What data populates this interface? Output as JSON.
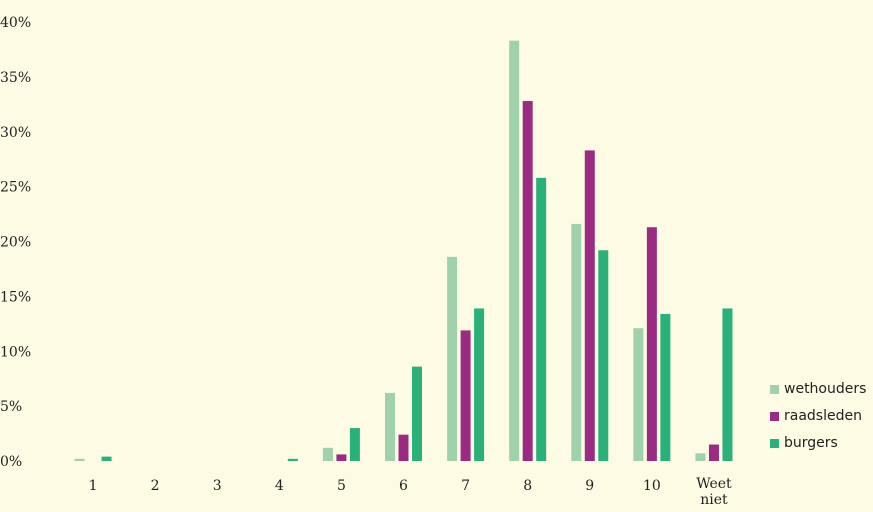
{
  "chart_data": {
    "type": "bar",
    "categories": [
      "1",
      "2",
      "3",
      "4",
      "5",
      "6",
      "7",
      "8",
      "9",
      "10",
      "Weet niet"
    ],
    "series": [
      {
        "name": "wethouders",
        "color": "#9fd2ab",
        "values": [
          0.2,
          0,
          0,
          0,
          1.2,
          6.2,
          18.6,
          38.3,
          21.6,
          12.1,
          0.7
        ]
      },
      {
        "name": "raadsleden",
        "color": "#9b2b82",
        "values": [
          0,
          0,
          0,
          0,
          0.6,
          2.4,
          11.9,
          32.8,
          28.3,
          21.3,
          1.5
        ]
      },
      {
        "name": "burgers",
        "color": "#2ab17a",
        "values": [
          0.4,
          0,
          0,
          0.2,
          3.0,
          8.6,
          13.9,
          25.8,
          19.2,
          13.4,
          13.9
        ]
      }
    ],
    "ylim": [
      0,
      40
    ],
    "yticks": [
      "0%",
      "5%",
      "10%",
      "15%",
      "20%",
      "25%",
      "30%",
      "35%",
      "40%"
    ],
    "grid": false,
    "legend_position": "bottom-right"
  }
}
